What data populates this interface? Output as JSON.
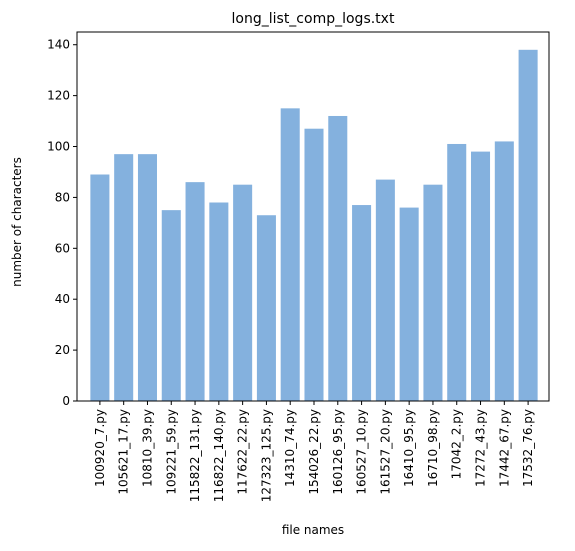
{
  "chart_data": {
    "type": "bar",
    "title": "long_list_comp_logs.txt",
    "xlabel": "file names",
    "ylabel": "number of characters",
    "categories": [
      "100920_7.py",
      "105621_17.py",
      "10810_39.py",
      "109221_59.py",
      "115822_131.py",
      "116822_140.py",
      "117622_22.py",
      "127323_125.py",
      "14310_74.py",
      "154026_22.py",
      "160126_95.py",
      "160527_10.py",
      "161527_20.py",
      "16410_95.py",
      "16710_98.py",
      "17042_2.py",
      "17272_43.py",
      "17442_67.py",
      "17532_76.py"
    ],
    "values": [
      89,
      97,
      97,
      75,
      86,
      78,
      85,
      73,
      115,
      107,
      112,
      77,
      87,
      76,
      85,
      101,
      98,
      102,
      138
    ],
    "ylim": [
      0,
      145
    ],
    "yticks": [
      0,
      20,
      40,
      60,
      80,
      100,
      120,
      140
    ],
    "bar_color": "#84b1de",
    "grid": false,
    "legend": false
  }
}
